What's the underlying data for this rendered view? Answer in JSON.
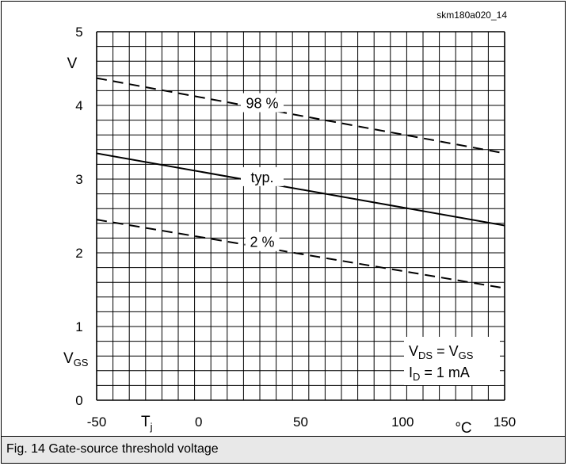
{
  "figure": {
    "code": "skm180a020_14",
    "caption": "Fig. 14 Gate-source threshold voltage"
  },
  "chart_data": {
    "type": "line",
    "title": "",
    "xlabel": "T",
    "xlabel_sub": "j",
    "xunit": "°C",
    "ylabel": "V",
    "ylabel_sub": "GS",
    "yunit": "V",
    "xlim": [
      -50,
      150
    ],
    "ylim": [
      0,
      5
    ],
    "x_ticks": [
      "-50",
      "0",
      "50",
      "100",
      "150"
    ],
    "y_ticks": [
      "5",
      "4",
      "3",
      "2",
      "1",
      "0"
    ],
    "grid": true,
    "series": [
      {
        "name": "98 %",
        "style": "dashed",
        "x": [
          -50,
          150
        ],
        "y": [
          4.37,
          3.35
        ]
      },
      {
        "name": "typ.",
        "style": "solid",
        "x": [
          -50,
          150
        ],
        "y": [
          3.35,
          2.37
        ]
      },
      {
        "name": "2 %",
        "style": "dashed",
        "x": [
          -50,
          150
        ],
        "y": [
          2.45,
          1.52
        ]
      }
    ],
    "conditions": {
      "line1": {
        "a": "V",
        "a_sub": "DS",
        "eq": " = ",
        "b": "V",
        "b_sub": "GS"
      },
      "line2": {
        "a": "I",
        "a_sub": "D",
        "rest": " = 1 mA"
      }
    }
  }
}
